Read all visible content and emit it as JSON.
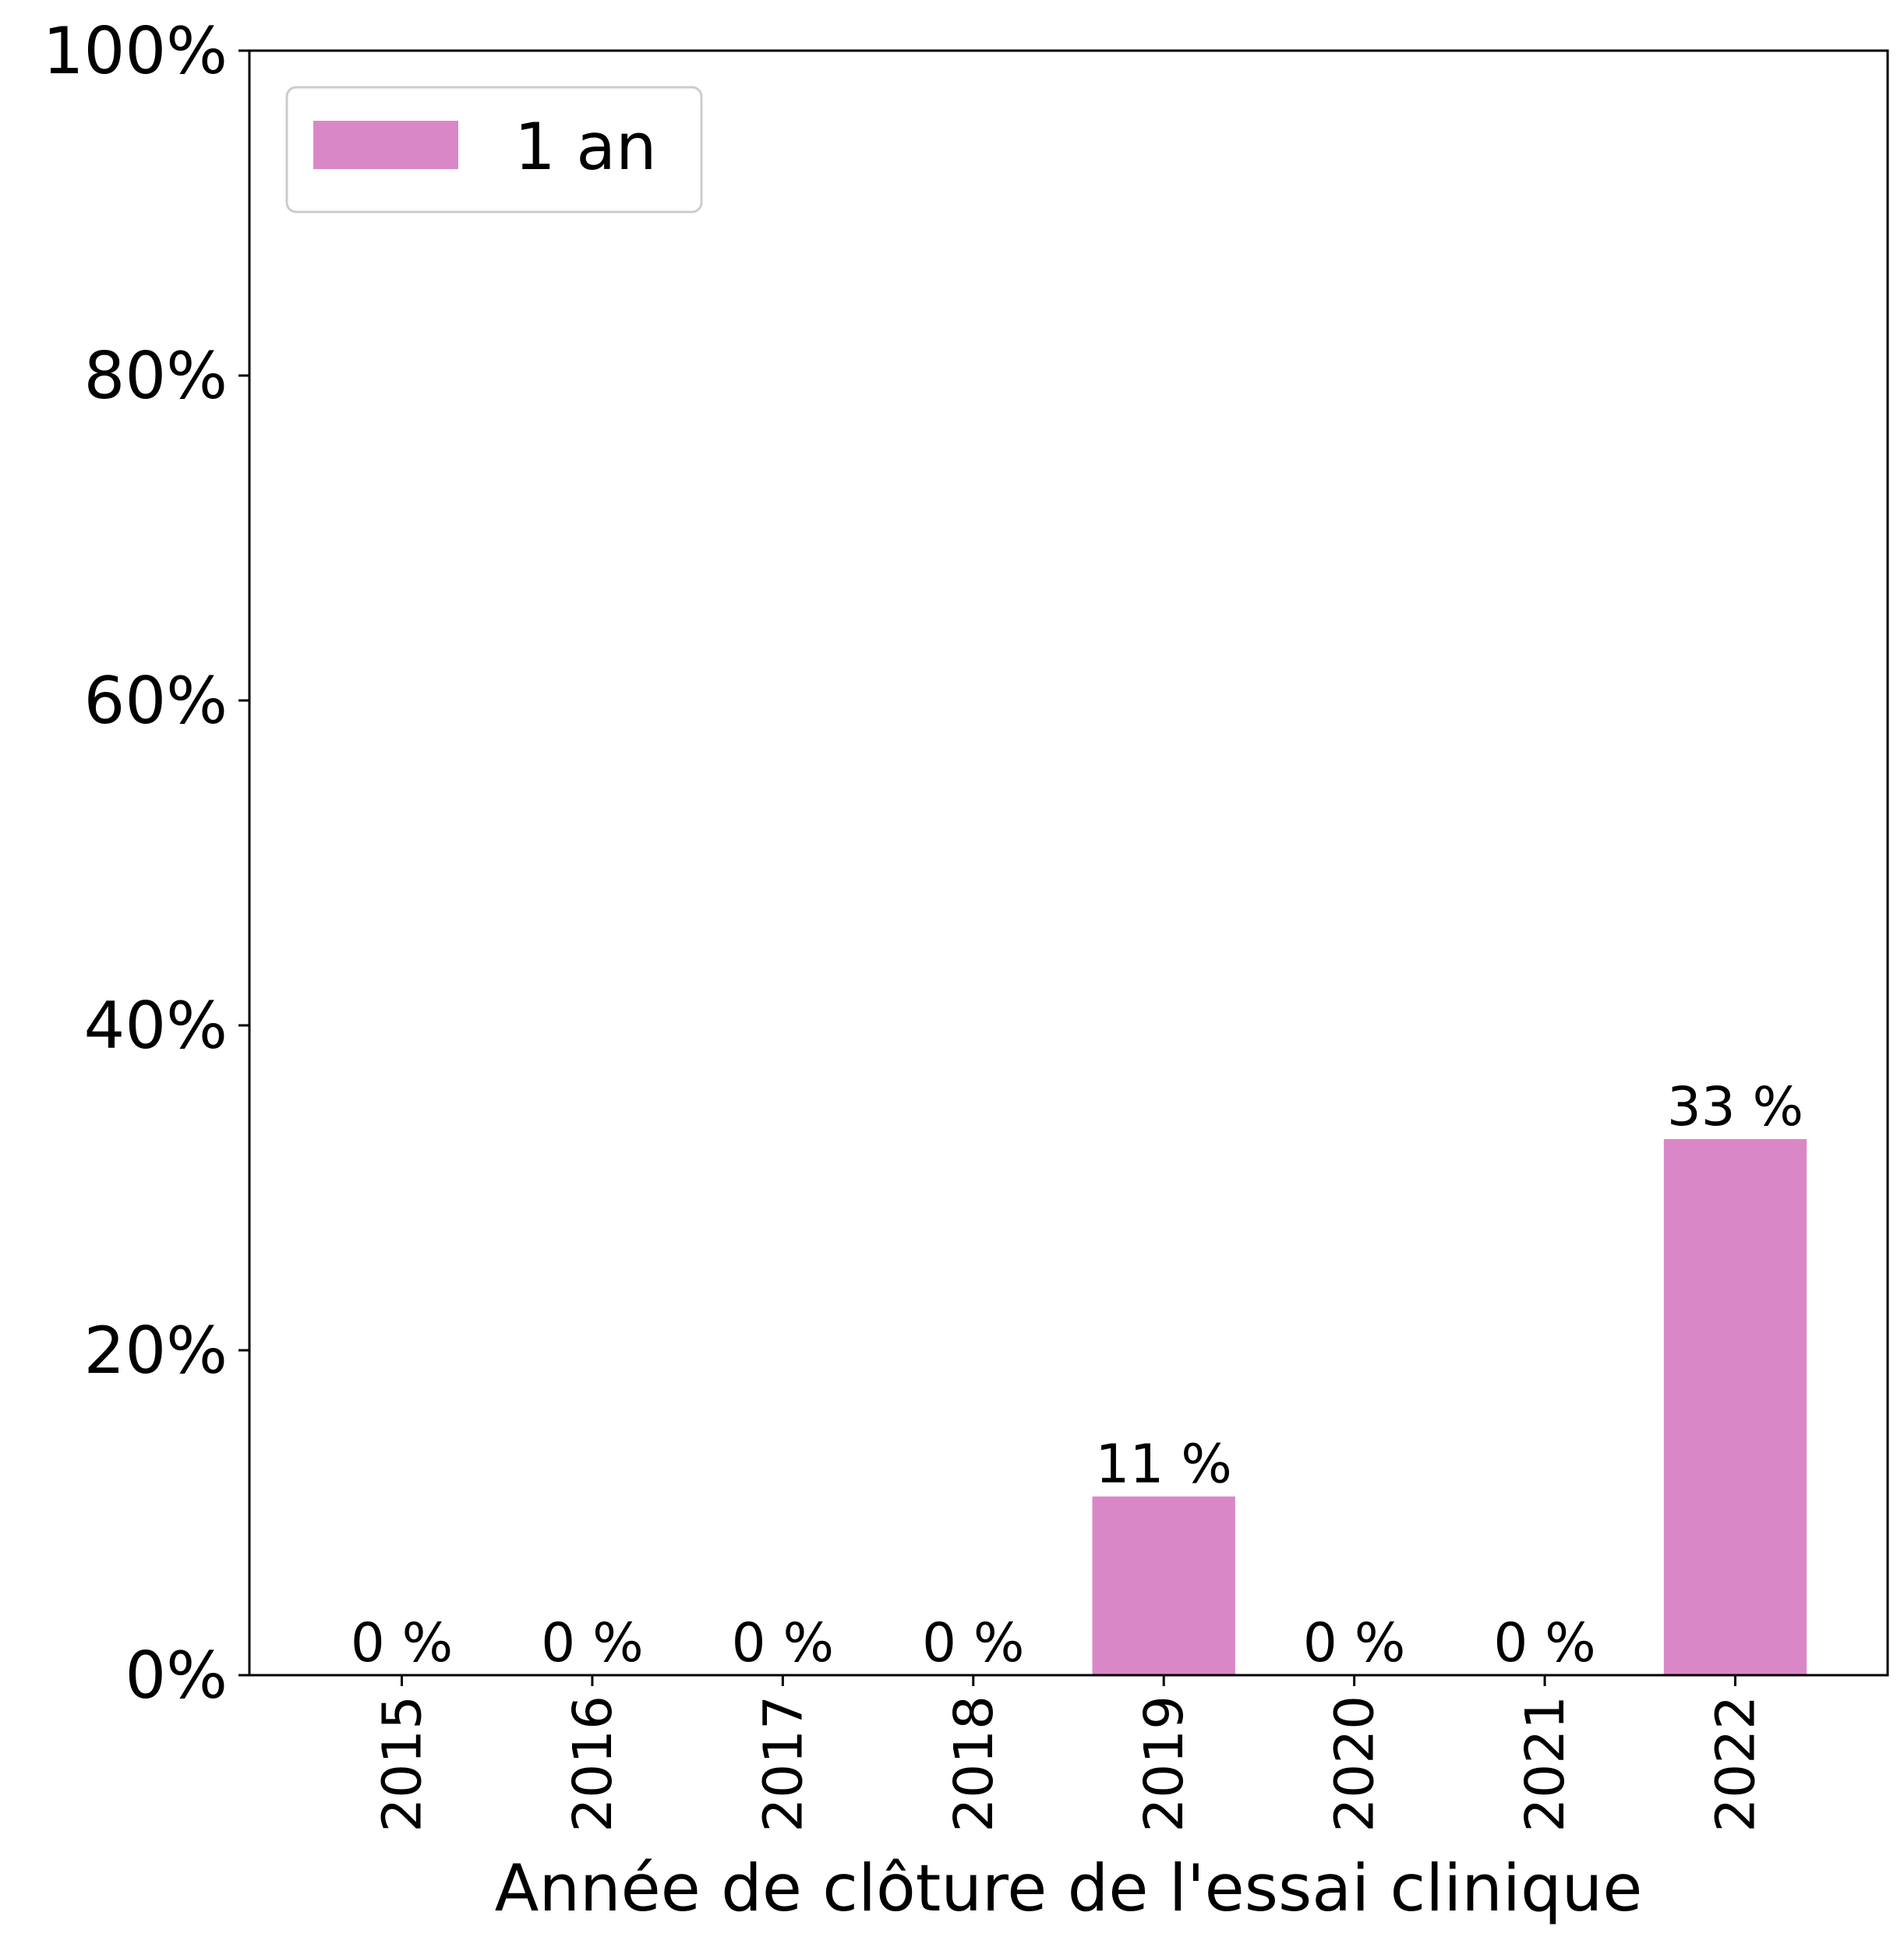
{
  "chart_data": {
    "type": "bar",
    "categories": [
      "2015",
      "2016",
      "2017",
      "2018",
      "2019",
      "2020",
      "2021",
      "2022"
    ],
    "series": [
      {
        "name": "1 an",
        "values": [
          0,
          0,
          0,
          0,
          11,
          0,
          0,
          33
        ],
        "color": "#da87c8"
      }
    ],
    "data_labels": [
      "0 %",
      "0 %",
      "0 %",
      "0 %",
      "11 %",
      "0 %",
      "0 %",
      "33 %"
    ],
    "title": "",
    "xlabel": "Année de clôture de l'essai clinique",
    "ylabel": "",
    "ylim": [
      0,
      100
    ],
    "yticks": [
      0,
      20,
      40,
      60,
      80,
      100
    ],
    "ytick_labels": [
      "0%",
      "20%",
      "40%",
      "60%",
      "80%",
      "100%"
    ],
    "grid": false,
    "legend": {
      "position": "top-left",
      "entries": [
        "1 an"
      ]
    }
  }
}
